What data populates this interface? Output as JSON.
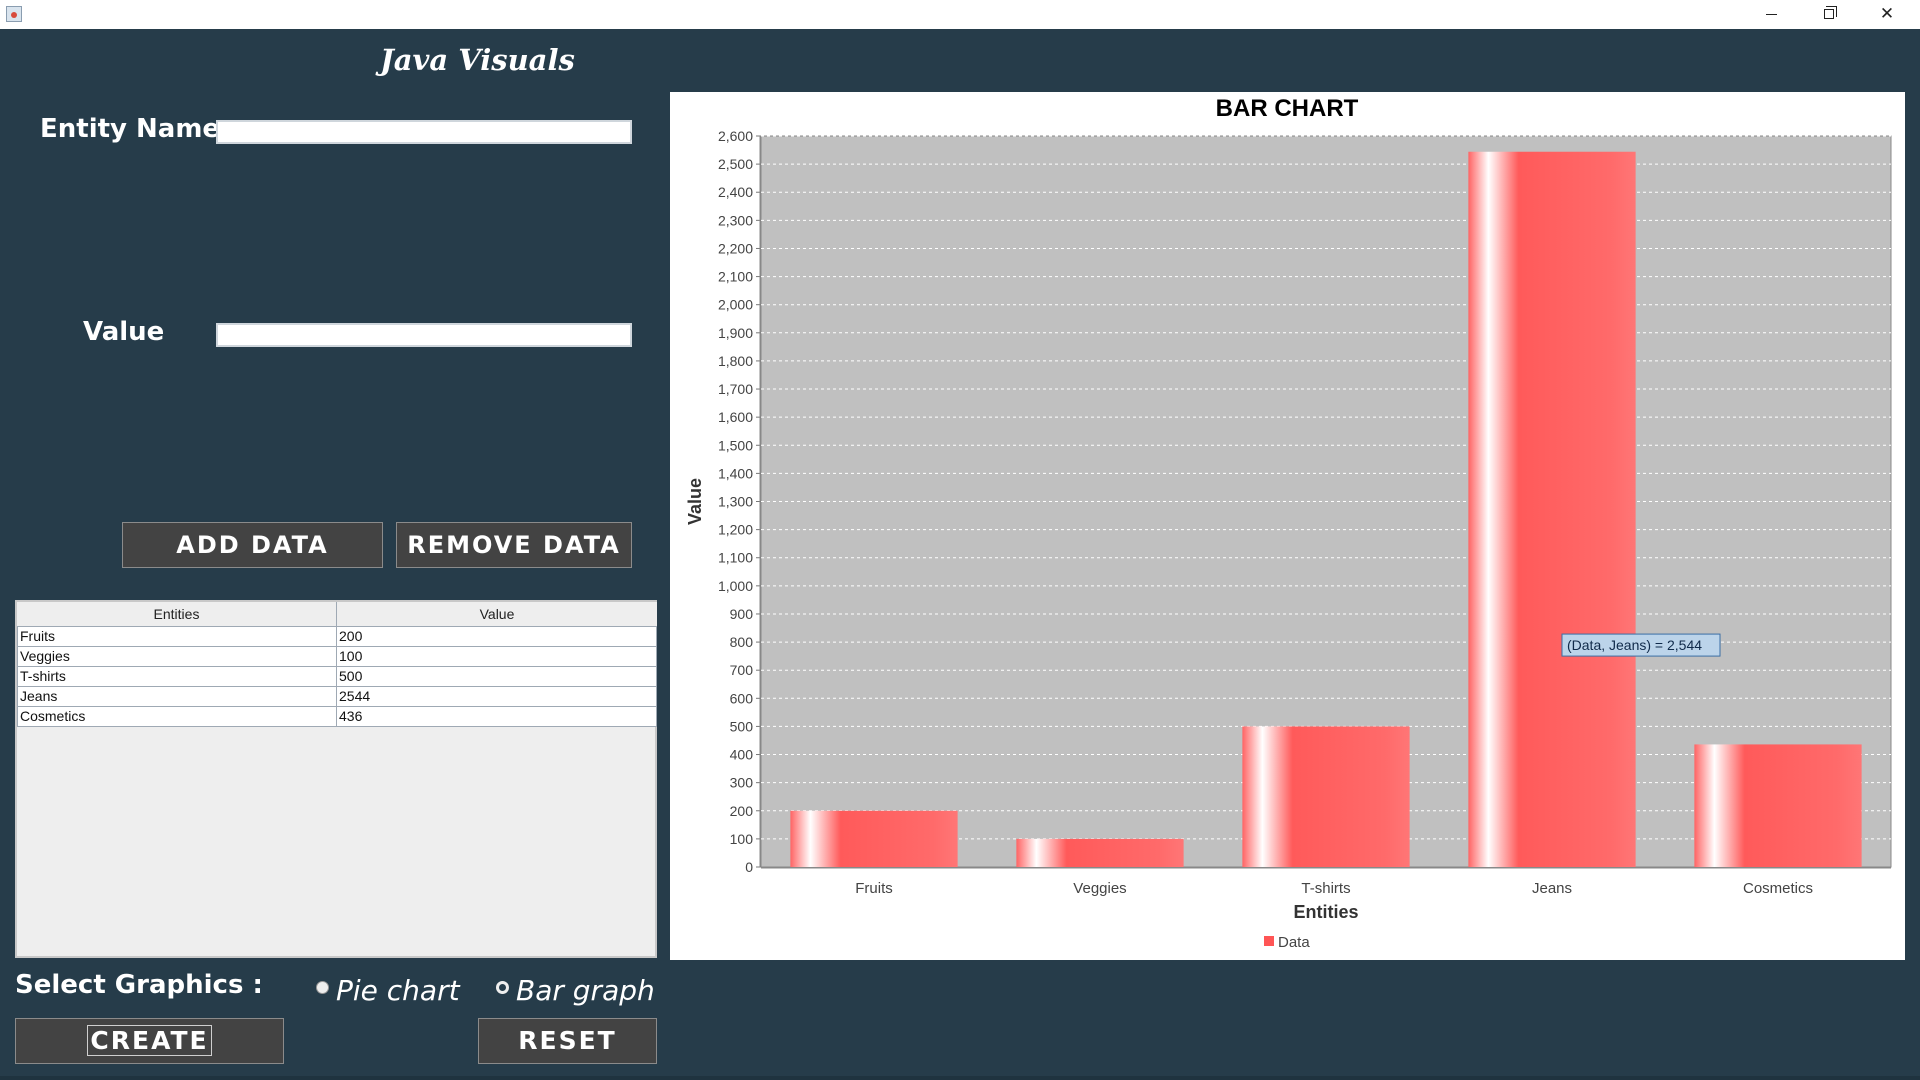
{
  "window": {
    "minimize_icon": "minimize-icon",
    "maximize_icon": "restore-icon",
    "close_icon": "close-icon",
    "close_glyph": "✕"
  },
  "logo": {
    "text": "Java Visuals"
  },
  "form": {
    "entity_label": "Entity Name",
    "entity_value": "",
    "value_label": "Value",
    "value_value": "",
    "add_button": "ADD DATA",
    "remove_button": "REMOVE DATA"
  },
  "table": {
    "headers": [
      "Entities",
      "Value"
    ],
    "rows": [
      {
        "entity": "Fruits",
        "value": "200"
      },
      {
        "entity": "Veggies",
        "value": "100"
      },
      {
        "entity": "T-shirts",
        "value": "500"
      },
      {
        "entity": "Jeans",
        "value": "2544"
      },
      {
        "entity": "Cosmetics",
        "value": "436"
      }
    ]
  },
  "graphics": {
    "label": "Select Graphics :",
    "options": [
      "Pie chart",
      "Bar graph"
    ],
    "create_button": "CREATE",
    "reset_button": "RESET"
  },
  "chart_data": {
    "type": "bar",
    "title": "BAR CHART",
    "xlabel": "Entities",
    "ylabel": "Value",
    "categories": [
      "Fruits",
      "Veggies",
      "T-shirts",
      "Jeans",
      "Cosmetics"
    ],
    "series": [
      {
        "name": "Data",
        "values": [
          200,
          100,
          500,
          2544,
          436
        ],
        "color": "#ff5555"
      }
    ],
    "ylim": [
      0,
      2600
    ],
    "ytick_step": 100,
    "grid": true,
    "legend": "bottom-center",
    "plot_background": "#c0c0c0",
    "tooltip": "(Data, Jeans) = 2,544"
  }
}
